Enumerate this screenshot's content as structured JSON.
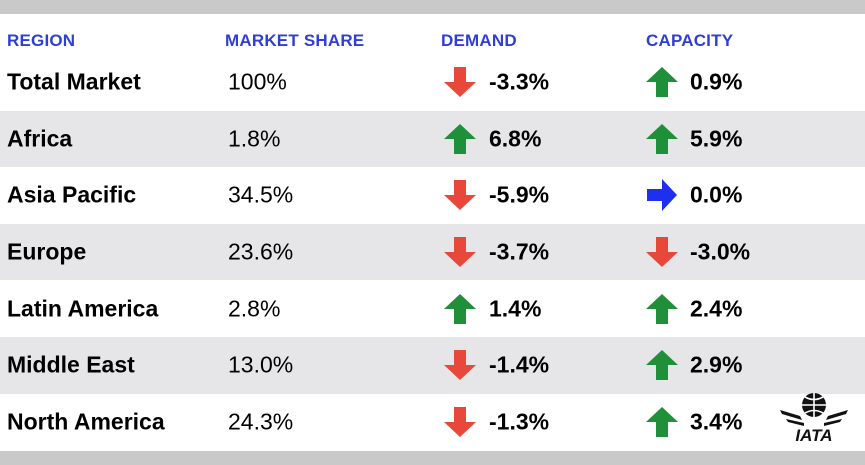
{
  "chart_data": {
    "type": "table",
    "columns": [
      "REGION",
      "MARKET SHARE",
      "DEMAND",
      "CAPACITY"
    ],
    "rows": [
      {
        "region": "Total Market",
        "share": "100%",
        "demand": "-3.3%",
        "demand_dir": "down",
        "capacity": "0.9%",
        "capacity_dir": "up"
      },
      {
        "region": "Africa",
        "share": "1.8%",
        "demand": "6.8%",
        "demand_dir": "up",
        "capacity": "5.9%",
        "capacity_dir": "up"
      },
      {
        "region": "Asia Pacific",
        "share": "34.5%",
        "demand": "-5.9%",
        "demand_dir": "down",
        "capacity": "0.0%",
        "capacity_dir": "flat"
      },
      {
        "region": "Europe",
        "share": "23.6%",
        "demand": "-3.7%",
        "demand_dir": "down",
        "capacity": "-3.0%",
        "capacity_dir": "down"
      },
      {
        "region": "Latin America",
        "share": "2.8%",
        "demand": "1.4%",
        "demand_dir": "up",
        "capacity": "2.4%",
        "capacity_dir": "up"
      },
      {
        "region": "Middle East",
        "share": "13.0%",
        "demand": "-1.4%",
        "demand_dir": "down",
        "capacity": "2.9%",
        "capacity_dir": "up"
      },
      {
        "region": "North America",
        "share": "24.3%",
        "demand": "-1.3%",
        "demand_dir": "down",
        "capacity": "3.4%",
        "capacity_dir": "up"
      }
    ],
    "colors": {
      "up": "#1f8f3a",
      "down": "#e8483a",
      "flat": "#1f2ff0",
      "header": "#2f3fd4"
    }
  },
  "logo": {
    "text": "IATA"
  }
}
